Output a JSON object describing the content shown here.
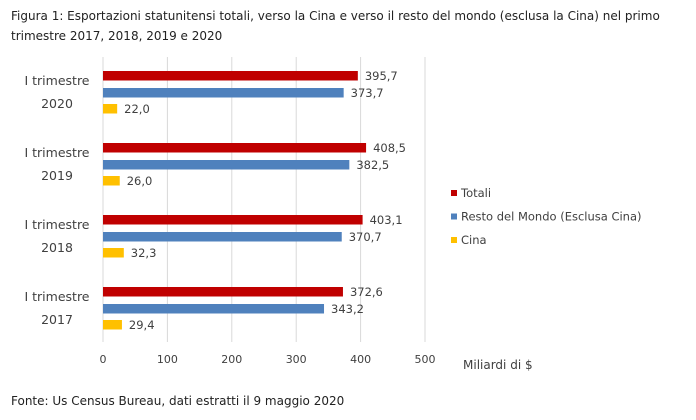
{
  "chart_data": {
    "type": "bar",
    "orientation": "horizontal",
    "title": "Figura 1: Esportazioni statunitensi totali, verso la Cina e verso il resto del mondo (esclusa la Cina) nel primo trimestre 2017, 2018, 2019 e 2020",
    "categories": [
      [
        "I trimestre",
        "2020"
      ],
      [
        "I trimestre",
        "2019"
      ],
      [
        "I trimestre",
        "2018"
      ],
      [
        "I trimestre",
        "2017"
      ]
    ],
    "series": [
      {
        "name": "Totali",
        "color": "#C00000",
        "values": [
          395.7,
          408.5,
          403.1,
          372.6
        ],
        "labels": [
          "395,7",
          "408,5",
          "403,1",
          "372,6"
        ]
      },
      {
        "name": "Resto del Mondo (Esclusa Cina)",
        "color": "#4F81BD",
        "values": [
          373.7,
          382.5,
          370.7,
          343.2
        ],
        "labels": [
          "373,7",
          "382,5",
          "370,7",
          "343,2"
        ]
      },
      {
        "name": "Cina",
        "color": "#FFC000",
        "values": [
          22.0,
          26.0,
          32.3,
          29.4
        ],
        "labels": [
          "22,0",
          "26,0",
          "32,3",
          "29,4"
        ]
      }
    ],
    "xlabel": "Miliardi di $",
    "xlim": [
      0,
      500
    ],
    "xticks": [
      "0",
      "100",
      "200",
      "300",
      "400",
      "500"
    ],
    "grid": true,
    "legend_position": "right"
  },
  "source": "Fonte: Us Census Bureau, dati estratti il 9 maggio 2020"
}
